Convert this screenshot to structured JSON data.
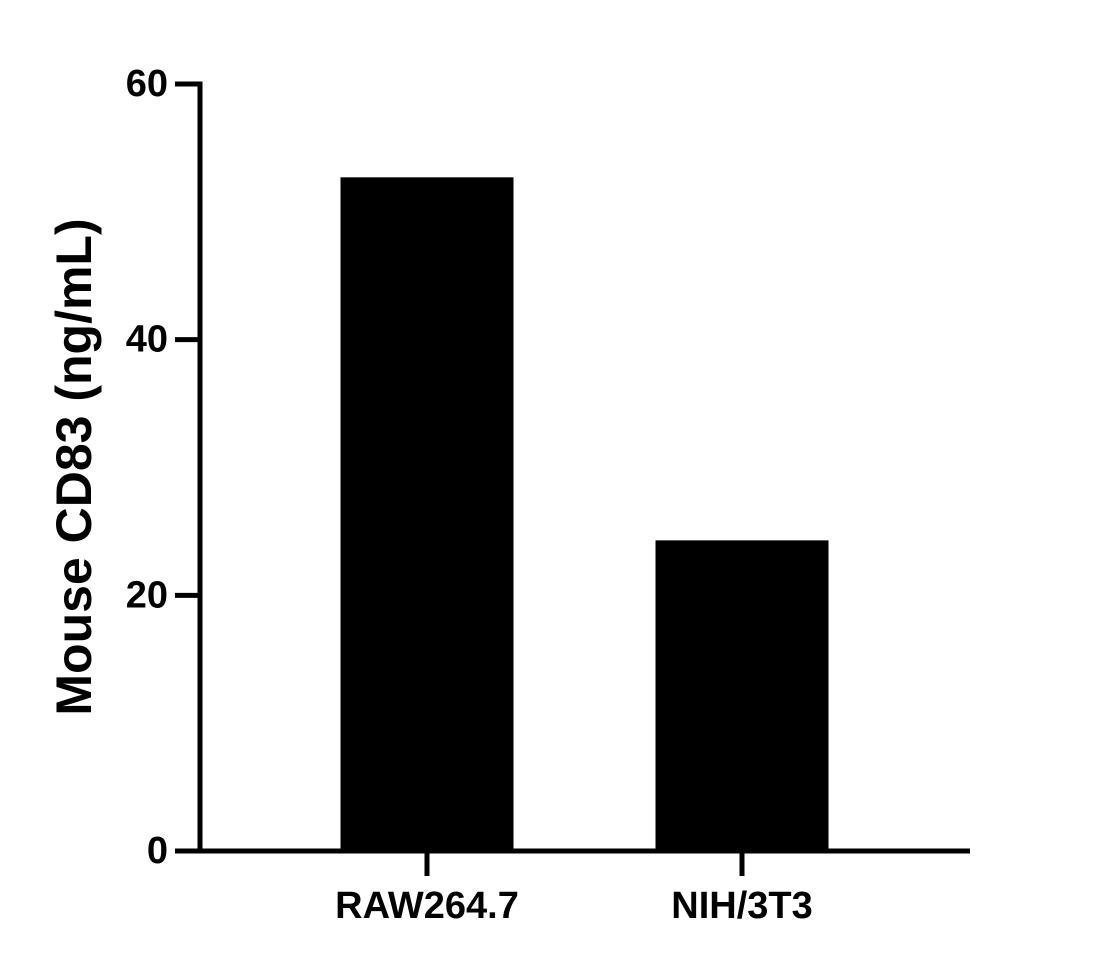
{
  "chart_data": {
    "type": "bar",
    "y_label": "Mouse CD83 (ng/mL)",
    "categories": [
      "RAW264.7",
      "NIH/3T3"
    ],
    "values": [
      52.7,
      24.3
    ],
    "color": "#000000",
    "ylim": [
      0,
      60
    ],
    "yticks": [
      0,
      20,
      40,
      60
    ],
    "grid": false
  }
}
